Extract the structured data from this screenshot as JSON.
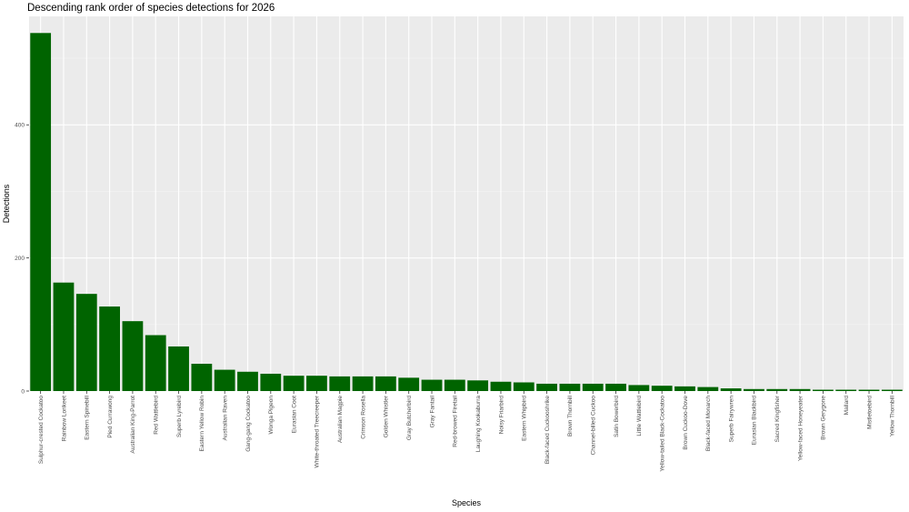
{
  "chart_data": {
    "type": "bar",
    "title": "Descending rank order of species detections for 2026",
    "xlabel": "Species",
    "ylabel": "Detections",
    "ylim": [
      0,
      563
    ],
    "yticks": [
      0,
      200,
      400
    ],
    "grid": true,
    "bar_color": "#006400",
    "panel_color": "#ebebeb",
    "categories": [
      "Sulphur-crested Cockatoo",
      "Rainbow Lorikeet",
      "Eastern Spinebill",
      "Pied Currawong",
      "Australian King-Parrot",
      "Red Wattlebird",
      "Superb Lyrebird",
      "Eastern Yellow Robin",
      "Australian Raven",
      "Gang-gang Cockatoo",
      "Wonga Pigeon",
      "Eurasian Coot",
      "White-throated Treecreeper",
      "Australian Magpie",
      "Crimson Rosella",
      "Golden Whistler",
      "Gray Butcherbird",
      "Gray Fantail",
      "Red-browed Firetail",
      "Laughing Kookaburra",
      "Noisy Friarbird",
      "Eastern Whipbird",
      "Black-faced Cuckooshrike",
      "Brown Thornbill",
      "Channel-billed Cuckoo",
      "Satin Bowerbird",
      "Little Wattlebird",
      "Yellow-tailed Black-Cockatoo",
      "Brown Cuckoo-Dove",
      "Black-faced Monarch",
      "Superb Fairywren",
      "Eurasian Blackbird",
      "Sacred Kingfisher",
      "Yellow-faced Honeyeater",
      "Brown Gerygone",
      "Mallard",
      "Mistletoebird",
      "Yellow Thornbill"
    ],
    "values": [
      538,
      163,
      146,
      127,
      105,
      84,
      67,
      41,
      32,
      29,
      26,
      23,
      23,
      22,
      22,
      22,
      20,
      17,
      17,
      16,
      14,
      13,
      11,
      11,
      11,
      11,
      9,
      8,
      7,
      6,
      4,
      3,
      3,
      3,
      2,
      2,
      2,
      2
    ]
  }
}
